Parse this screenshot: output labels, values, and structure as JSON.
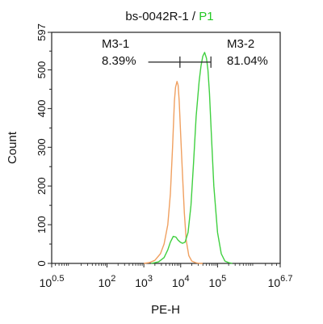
{
  "chart_data": {
    "type": "line",
    "title": {
      "sample": "bs-0042R-1",
      "separator": " / ",
      "gate": "P1"
    },
    "xlabel": "PE-H",
    "ylabel": "Count",
    "xscale": "log",
    "xlim_log10": [
      0.5,
      6.7
    ],
    "ylim": [
      0,
      597
    ],
    "xticks": [
      {
        "base": "10",
        "exp": "0.5",
        "log10": 0.5
      },
      {
        "base": "10",
        "exp": "2",
        "log10": 2
      },
      {
        "base": "10",
        "exp": "3",
        "log10": 3
      },
      {
        "base": "10",
        "exp": "4",
        "log10": 4
      },
      {
        "base": "10",
        "exp": "5",
        "log10": 5
      },
      {
        "base": "10",
        "exp": "6.7",
        "log10": 6.7
      }
    ],
    "yticks": [
      {
        "label": "0",
        "value": 0
      },
      {
        "label": "100",
        "value": 100
      },
      {
        "label": "200",
        "value": 200
      },
      {
        "label": "300",
        "value": 300
      },
      {
        "label": "400",
        "value": 400
      },
      {
        "label": "500",
        "value": 500
      },
      {
        "label": "597",
        "value": 597
      }
    ],
    "gate_marker": {
      "x_start_log10": 3.12,
      "x_divider_log10": 3.98,
      "x_end_log10": 4.82,
      "y": 520
    },
    "gates": [
      {
        "name": "M3-1",
        "percent": "8.39%"
      },
      {
        "name": "M3-2",
        "percent": "81.04%"
      }
    ],
    "series": [
      {
        "color": "#f0a060",
        "x_log10": [
          3.0,
          3.15,
          3.3,
          3.45,
          3.55,
          3.65,
          3.72,
          3.78,
          3.83,
          3.86,
          3.9,
          3.93,
          3.96,
          4.0,
          4.05,
          4.1,
          4.15,
          4.22,
          4.3,
          4.4,
          4.5,
          4.6
        ],
        "y": [
          0,
          2,
          8,
          25,
          50,
          100,
          180,
          300,
          420,
          455,
          470,
          460,
          420,
          330,
          230,
          130,
          60,
          20,
          6,
          2,
          0,
          0
        ]
      },
      {
        "color": "#40d040",
        "x_log10": [
          3.2,
          3.4,
          3.55,
          3.65,
          3.72,
          3.8,
          3.87,
          3.93,
          3.99,
          4.05,
          4.12,
          4.2,
          4.28,
          4.35,
          4.42,
          4.5,
          4.55,
          4.6,
          4.65,
          4.7,
          4.74,
          4.78,
          4.83,
          4.9,
          5.0,
          5.1,
          5.2,
          5.3,
          5.4
        ],
        "y": [
          0,
          4,
          15,
          35,
          55,
          70,
          68,
          60,
          55,
          52,
          55,
          80,
          150,
          260,
          380,
          470,
          510,
          535,
          545,
          530,
          500,
          440,
          340,
          200,
          80,
          25,
          6,
          2,
          0
        ]
      }
    ]
  }
}
